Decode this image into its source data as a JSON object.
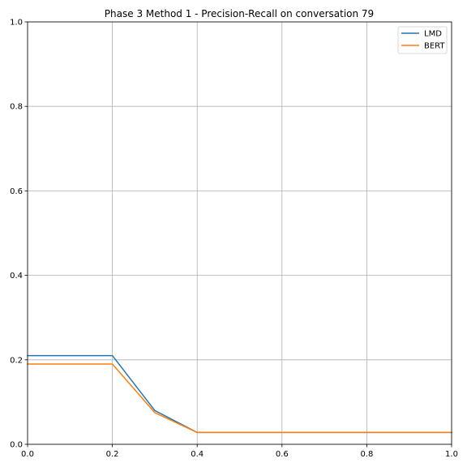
{
  "chart_data": {
    "type": "line",
    "title": "Phase 3 Method 1 - Precision-Recall on conversation 79",
    "xlabel": "",
    "ylabel": "",
    "xlim": [
      0,
      1
    ],
    "ylim": [
      0,
      1
    ],
    "x_ticks": [
      "0.0",
      "0.2",
      "0.4",
      "0.6",
      "0.8",
      "1.0"
    ],
    "y_ticks": [
      "0.0",
      "0.2",
      "0.4",
      "0.6",
      "0.8",
      "1.0"
    ],
    "grid": true,
    "legend_position": "top-right",
    "series": [
      {
        "name": "LMD",
        "color": "#1f77b4",
        "x": [
          0.0,
          0.1,
          0.2,
          0.3,
          0.4,
          0.5,
          0.6,
          0.7,
          0.8,
          0.9,
          1.0
        ],
        "y": [
          0.21,
          0.21,
          0.21,
          0.08,
          0.028,
          0.028,
          0.028,
          0.028,
          0.028,
          0.028,
          0.028
        ]
      },
      {
        "name": "BERT",
        "color": "#ff7f0e",
        "x": [
          0.0,
          0.1,
          0.2,
          0.3,
          0.4,
          0.5,
          0.6,
          0.7,
          0.8,
          0.9,
          1.0
        ],
        "y": [
          0.19,
          0.19,
          0.19,
          0.075,
          0.028,
          0.028,
          0.028,
          0.028,
          0.028,
          0.028,
          0.028
        ]
      }
    ]
  }
}
